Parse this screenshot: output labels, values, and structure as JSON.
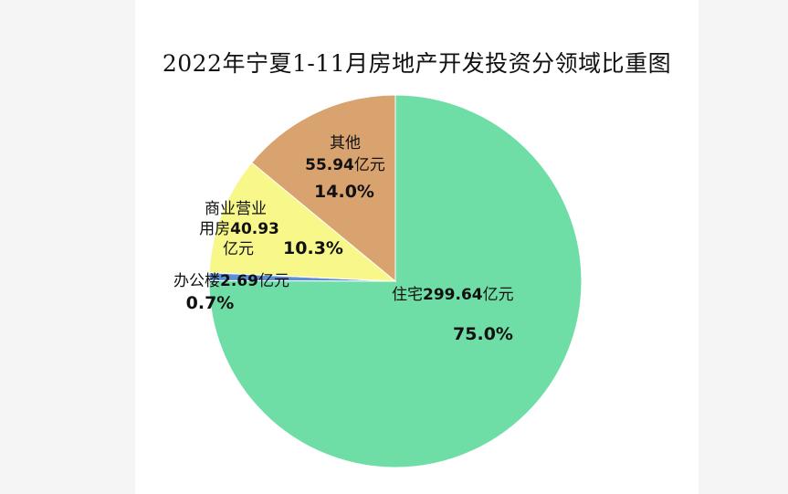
{
  "chart_data": {
    "type": "pie",
    "title": "2022年宁夏1-11月房地产开发投资分领域比重图",
    "unit": "亿元",
    "start_angle_deg": 0,
    "slices": [
      {
        "name": "住宅",
        "value": 299.64,
        "value_text": "299.64",
        "percent": "75.0%",
        "color": "#6fdda6"
      },
      {
        "name": "办公楼",
        "value": 2.69,
        "value_text": "2.69",
        "percent": "0.7%",
        "color": "#5b8fd6"
      },
      {
        "name": "商业营业用房",
        "value": 40.93,
        "value_text": "40.93",
        "percent": "10.3%",
        "color": "#f7f78a"
      },
      {
        "name": "其他",
        "value": 55.94,
        "value_text": "55.94",
        "percent": "14.0%",
        "color": "#d9a36f"
      }
    ]
  }
}
